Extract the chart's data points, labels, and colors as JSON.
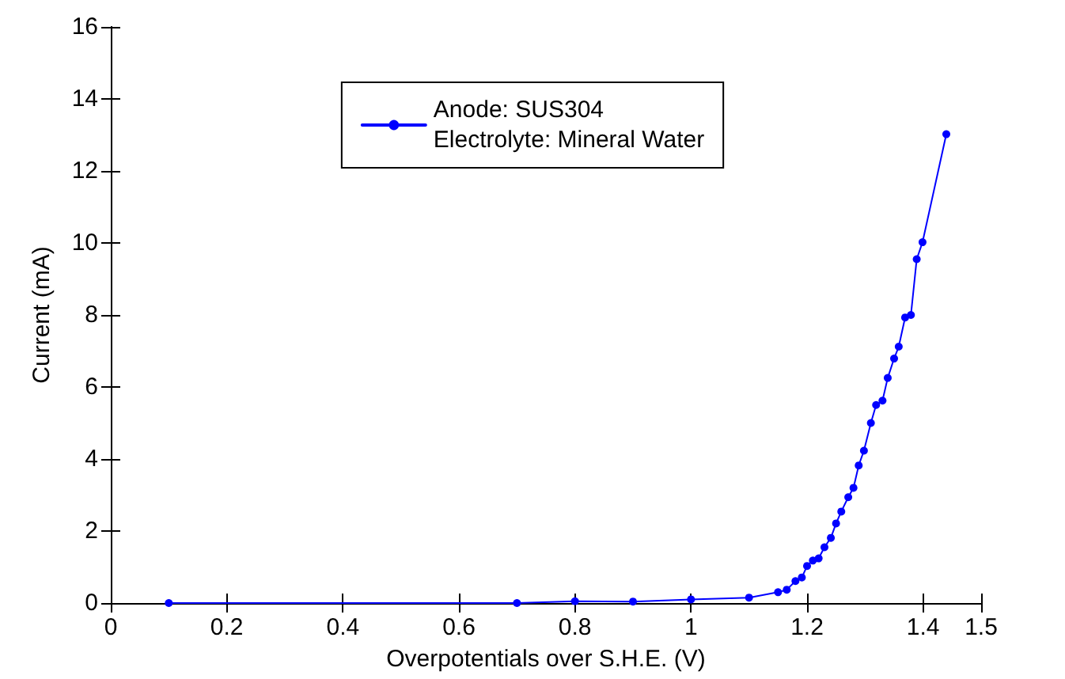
{
  "chart_data": {
    "type": "line",
    "xlabel": "Overpotentials over S.H.E. (V)",
    "ylabel": "Current (mA)",
    "xlim": [
      0,
      1.5
    ],
    "xticks": [
      0,
      0.2,
      0.4,
      0.6,
      0.8,
      1,
      1.2,
      1.4,
      1.5
    ],
    "ylim": [
      0,
      16
    ],
    "yticks": [
      0,
      2,
      4,
      6,
      8,
      10,
      12,
      14,
      16
    ],
    "grid": false,
    "legend": "top",
    "marker": "circle",
    "line_style": "solid",
    "series": [
      {
        "name": "Anode: SUS304\nElectrolyte: Mineral Water",
        "color": "#0000ff",
        "x": [
          0.1,
          0.7,
          0.8,
          0.9,
          1.0,
          1.1,
          1.15,
          1.165,
          1.18,
          1.191,
          1.2,
          1.21,
          1.22,
          1.23,
          1.241,
          1.25,
          1.259,
          1.271,
          1.28,
          1.289,
          1.298,
          1.31,
          1.319,
          1.33,
          1.339,
          1.35,
          1.358,
          1.369,
          1.379,
          1.389,
          1.399,
          1.44
        ],
        "values": [
          0,
          0,
          0.05,
          0.04,
          0.1,
          0.15,
          0.3,
          0.37,
          0.61,
          0.71,
          1.03,
          1.18,
          1.24,
          1.55,
          1.81,
          2.21,
          2.54,
          2.94,
          3.2,
          3.82,
          4.23,
          5.0,
          5.5,
          5.62,
          6.25,
          6.79,
          7.12,
          7.93,
          8.0,
          9.55,
          10.02,
          13.02
        ]
      }
    ]
  }
}
